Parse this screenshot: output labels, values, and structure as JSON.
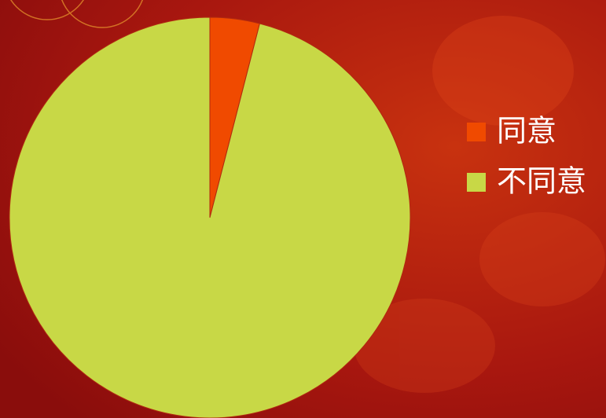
{
  "chart_data": {
    "type": "pie",
    "categories": [
      "同意",
      "不同意"
    ],
    "values": [
      4,
      96
    ],
    "colors": [
      "#f04a00",
      "#c8d846"
    ],
    "start_angle": 0,
    "direction": "clockwise",
    "legend": "right"
  }
}
